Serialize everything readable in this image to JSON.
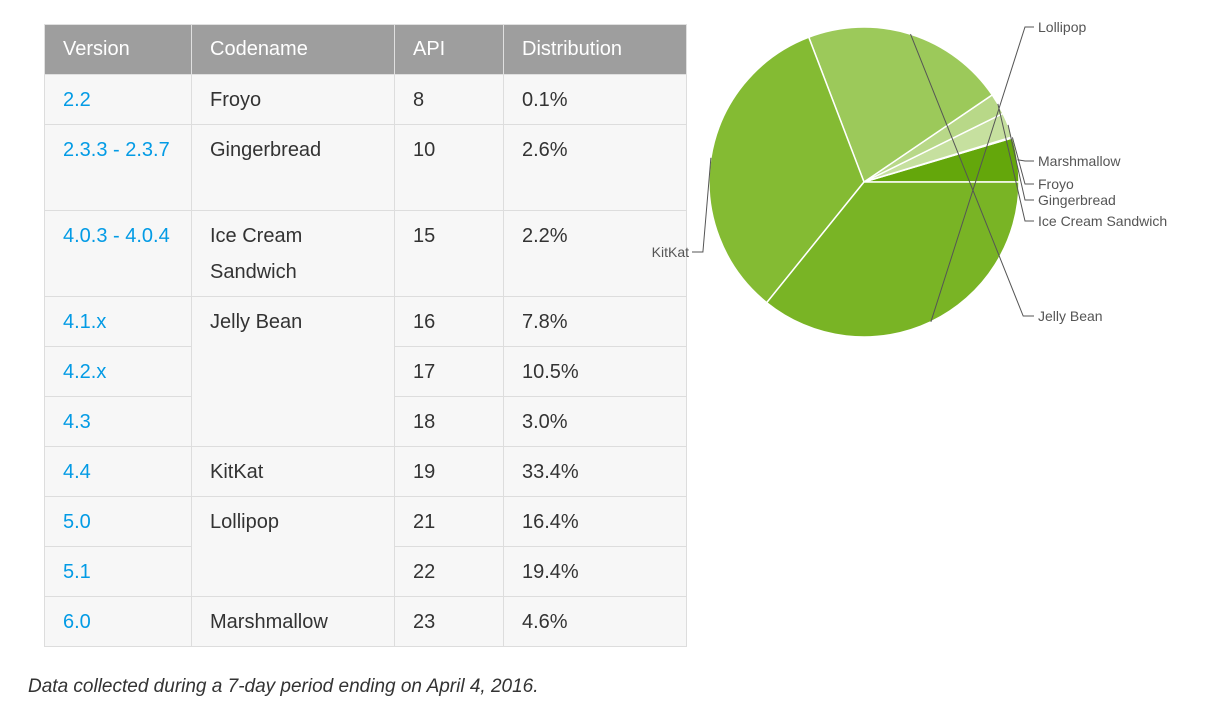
{
  "table": {
    "headers": [
      "Version",
      "Codename",
      "API",
      "Distribution"
    ],
    "rows": [
      {
        "version": "2.2",
        "codename": "Froyo",
        "api": "8",
        "distribution": "0.1%"
      },
      {
        "version": "2.3.3 - 2.3.7",
        "codename": "Gingerbread",
        "api": "10",
        "distribution": "2.6%"
      },
      {
        "version": "4.0.3 - 4.0.4",
        "codename": "Ice Cream Sandwich",
        "api": "15",
        "distribution": "2.2%"
      },
      {
        "version": "4.1.x",
        "codename": "Jelly Bean",
        "api": "16",
        "distribution": "7.8%"
      },
      {
        "version": "4.2.x",
        "codename": "",
        "api": "17",
        "distribution": "10.5%"
      },
      {
        "version": "4.3",
        "codename": "",
        "api": "18",
        "distribution": "3.0%"
      },
      {
        "version": "4.4",
        "codename": "KitKat",
        "api": "19",
        "distribution": "33.4%"
      },
      {
        "version": "5.0",
        "codename": "Lollipop",
        "api": "21",
        "distribution": "16.4%"
      },
      {
        "version": "5.1",
        "codename": "",
        "api": "22",
        "distribution": "19.4%"
      },
      {
        "version": "6.0",
        "codename": "Marshmallow",
        "api": "23",
        "distribution": "4.6%"
      }
    ]
  },
  "caption": "Data collected during a 7-day period ending on April 4, 2016.",
  "chart_data": {
    "type": "pie",
    "slices": [
      {
        "label": "Marshmallow",
        "value": 4.6,
        "color": "#64a70b"
      },
      {
        "label": "Froyo",
        "value": 0.1,
        "color": "#d4e9b5"
      },
      {
        "label": "Gingerbread",
        "value": 2.6,
        "color": "#c6e09f"
      },
      {
        "label": "Ice Cream Sandwich",
        "value": 2.2,
        "color": "#b8d888"
      },
      {
        "label": "Jelly Bean",
        "value": 21.3,
        "color": "#9cc95a"
      },
      {
        "label": "KitKat",
        "value": 33.4,
        "color": "#84bb33"
      },
      {
        "label": "Lollipop",
        "value": 35.8,
        "color": "#79b425"
      }
    ]
  }
}
